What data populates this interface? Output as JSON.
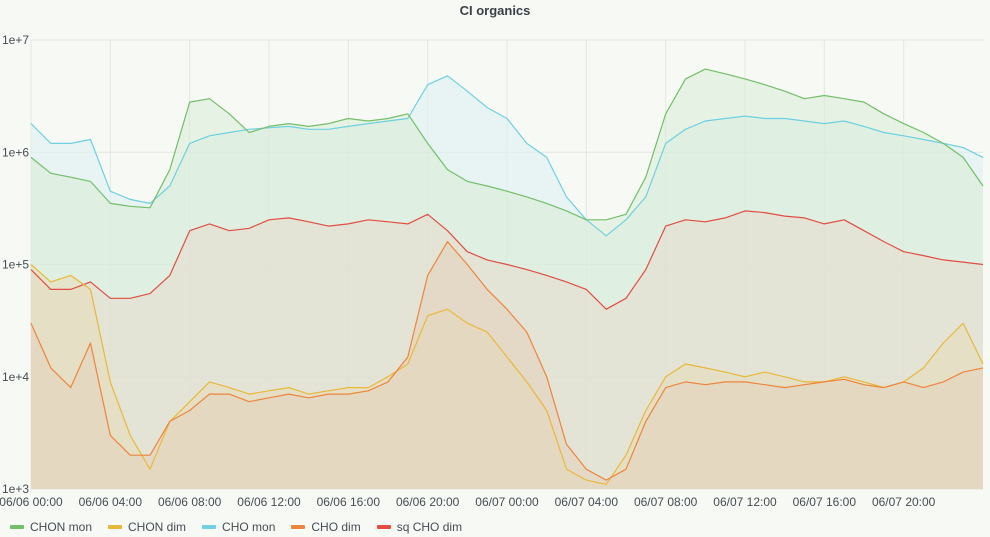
{
  "chart_data": {
    "type": "area",
    "title": "CI organics",
    "y_scale": "log",
    "ylim": [
      1000,
      10000000
    ],
    "y_ticks": [
      1000,
      10000,
      100000,
      1000000,
      10000000
    ],
    "y_tick_labels": [
      "1e+3",
      "1e+4",
      "1e+5",
      "1e+6",
      "1e+7"
    ],
    "x_start": "06/06 00:00",
    "x_end": "06/08 00:00",
    "x_ticks": [
      "06/06 00:00",
      "06/06 04:00",
      "06/06 08:00",
      "06/06 12:00",
      "06/06 16:00",
      "06/06 20:00",
      "06/07 00:00",
      "06/07 04:00",
      "06/07 08:00",
      "06/07 12:00",
      "06/07 16:00",
      "06/07 20:00"
    ],
    "grid": true,
    "legend_position": "bottom-left",
    "series": [
      {
        "name": "CHON mon",
        "color": "#73bf69",
        "fill": "#d9ecd4",
        "points": [
          [
            "06/06 00:00",
            900000
          ],
          [
            "06/06 01:00",
            650000
          ],
          [
            "06/06 02:00",
            600000
          ],
          [
            "06/06 03:00",
            550000
          ],
          [
            "06/06 04:00",
            350000
          ],
          [
            "06/06 05:00",
            330000
          ],
          [
            "06/06 06:00",
            320000
          ],
          [
            "06/06 07:00",
            700000
          ],
          [
            "06/06 08:00",
            2800000
          ],
          [
            "06/06 09:00",
            3000000
          ],
          [
            "06/06 10:00",
            2200000
          ],
          [
            "06/06 11:00",
            1500000
          ],
          [
            "06/06 12:00",
            1700000
          ],
          [
            "06/06 13:00",
            1800000
          ],
          [
            "06/06 14:00",
            1700000
          ],
          [
            "06/06 15:00",
            1800000
          ],
          [
            "06/06 16:00",
            2000000
          ],
          [
            "06/06 17:00",
            1900000
          ],
          [
            "06/06 18:00",
            2000000
          ],
          [
            "06/06 19:00",
            2200000
          ],
          [
            "06/06 20:00",
            1200000
          ],
          [
            "06/06 21:00",
            700000
          ],
          [
            "06/06 22:00",
            550000
          ],
          [
            "06/06 23:00",
            500000
          ],
          [
            "06/07 00:00",
            450000
          ],
          [
            "06/07 01:00",
            400000
          ],
          [
            "06/07 02:00",
            350000
          ],
          [
            "06/07 03:00",
            300000
          ],
          [
            "06/07 04:00",
            250000
          ],
          [
            "06/07 05:00",
            250000
          ],
          [
            "06/07 06:00",
            280000
          ],
          [
            "06/07 07:00",
            600000
          ],
          [
            "06/07 08:00",
            2200000
          ],
          [
            "06/07 09:00",
            4500000
          ],
          [
            "06/07 10:00",
            5500000
          ],
          [
            "06/07 11:00",
            5000000
          ],
          [
            "06/07 12:00",
            4500000
          ],
          [
            "06/07 13:00",
            4000000
          ],
          [
            "06/07 14:00",
            3500000
          ],
          [
            "06/07 15:00",
            3000000
          ],
          [
            "06/07 16:00",
            3200000
          ],
          [
            "06/07 17:00",
            3000000
          ],
          [
            "06/07 18:00",
            2800000
          ],
          [
            "06/07 19:00",
            2200000
          ],
          [
            "06/07 20:00",
            1800000
          ],
          [
            "06/07 21:00",
            1500000
          ],
          [
            "06/07 22:00",
            1200000
          ],
          [
            "06/07 23:00",
            900000
          ],
          [
            "06/08 00:00",
            500000
          ]
        ]
      },
      {
        "name": "CHON dim",
        "color": "#eab839",
        "fill": "#e8ddb8",
        "points": [
          [
            "06/06 00:00",
            100000
          ],
          [
            "06/06 01:00",
            70000
          ],
          [
            "06/06 02:00",
            80000
          ],
          [
            "06/06 03:00",
            60000
          ],
          [
            "06/06 04:00",
            9000
          ],
          [
            "06/06 05:00",
            3000
          ],
          [
            "06/06 06:00",
            1500
          ],
          [
            "06/06 07:00",
            4000
          ],
          [
            "06/06 08:00",
            6000
          ],
          [
            "06/06 09:00",
            9000
          ],
          [
            "06/06 10:00",
            8000
          ],
          [
            "06/06 11:00",
            7000
          ],
          [
            "06/06 12:00",
            7500
          ],
          [
            "06/06 13:00",
            8000
          ],
          [
            "06/06 14:00",
            7000
          ],
          [
            "06/06 15:00",
            7500
          ],
          [
            "06/06 16:00",
            8000
          ],
          [
            "06/06 17:00",
            8000
          ],
          [
            "06/06 18:00",
            10000
          ],
          [
            "06/06 19:00",
            13000
          ],
          [
            "06/06 20:00",
            35000
          ],
          [
            "06/06 21:00",
            40000
          ],
          [
            "06/06 22:00",
            30000
          ],
          [
            "06/06 23:00",
            25000
          ],
          [
            "06/07 00:00",
            15000
          ],
          [
            "06/07 01:00",
            9000
          ],
          [
            "06/07 02:00",
            5000
          ],
          [
            "06/07 03:00",
            1500
          ],
          [
            "06/07 04:00",
            1200
          ],
          [
            "06/07 05:00",
            1100
          ],
          [
            "06/07 06:00",
            2000
          ],
          [
            "06/07 07:00",
            5000
          ],
          [
            "06/07 08:00",
            10000
          ],
          [
            "06/07 09:00",
            13000
          ],
          [
            "06/07 10:00",
            12000
          ],
          [
            "06/07 11:00",
            11000
          ],
          [
            "06/07 12:00",
            10000
          ],
          [
            "06/07 13:00",
            11000
          ],
          [
            "06/07 14:00",
            10000
          ],
          [
            "06/07 15:00",
            9000
          ],
          [
            "06/07 16:00",
            9000
          ],
          [
            "06/07 17:00",
            10000
          ],
          [
            "06/07 18:00",
            9000
          ],
          [
            "06/07 19:00",
            8000
          ],
          [
            "06/07 20:00",
            9000
          ],
          [
            "06/07 21:00",
            12000
          ],
          [
            "06/07 22:00",
            20000
          ],
          [
            "06/07 23:00",
            30000
          ],
          [
            "06/08 00:00",
            13000
          ]
        ]
      },
      {
        "name": "CHO mon",
        "color": "#6ed0e0",
        "fill": "#dbf0f1",
        "points": [
          [
            "06/06 00:00",
            1800000
          ],
          [
            "06/06 01:00",
            1200000
          ],
          [
            "06/06 02:00",
            1200000
          ],
          [
            "06/06 03:00",
            1300000
          ],
          [
            "06/06 04:00",
            450000
          ],
          [
            "06/06 05:00",
            380000
          ],
          [
            "06/06 06:00",
            350000
          ],
          [
            "06/06 07:00",
            500000
          ],
          [
            "06/06 08:00",
            1200000
          ],
          [
            "06/06 09:00",
            1400000
          ],
          [
            "06/06 10:00",
            1500000
          ],
          [
            "06/06 11:00",
            1600000
          ],
          [
            "06/06 12:00",
            1650000
          ],
          [
            "06/06 13:00",
            1700000
          ],
          [
            "06/06 14:00",
            1600000
          ],
          [
            "06/06 15:00",
            1600000
          ],
          [
            "06/06 16:00",
            1700000
          ],
          [
            "06/06 17:00",
            1800000
          ],
          [
            "06/06 18:00",
            1900000
          ],
          [
            "06/06 19:00",
            2000000
          ],
          [
            "06/06 20:00",
            4000000
          ],
          [
            "06/06 21:00",
            4800000
          ],
          [
            "06/06 22:00",
            3500000
          ],
          [
            "06/06 23:00",
            2500000
          ],
          [
            "06/07 00:00",
            2000000
          ],
          [
            "06/07 01:00",
            1200000
          ],
          [
            "06/07 02:00",
            900000
          ],
          [
            "06/07 03:00",
            400000
          ],
          [
            "06/07 04:00",
            250000
          ],
          [
            "06/07 05:00",
            180000
          ],
          [
            "06/07 06:00",
            250000
          ],
          [
            "06/07 07:00",
            400000
          ],
          [
            "06/07 08:00",
            1200000
          ],
          [
            "06/07 09:00",
            1600000
          ],
          [
            "06/07 10:00",
            1900000
          ],
          [
            "06/07 11:00",
            2000000
          ],
          [
            "06/07 12:00",
            2100000
          ],
          [
            "06/07 13:00",
            2000000
          ],
          [
            "06/07 14:00",
            2000000
          ],
          [
            "06/07 15:00",
            1900000
          ],
          [
            "06/07 16:00",
            1800000
          ],
          [
            "06/07 17:00",
            1900000
          ],
          [
            "06/07 18:00",
            1700000
          ],
          [
            "06/07 19:00",
            1500000
          ],
          [
            "06/07 20:00",
            1400000
          ],
          [
            "06/07 21:00",
            1300000
          ],
          [
            "06/07 22:00",
            1200000
          ],
          [
            "06/07 23:00",
            1100000
          ],
          [
            "06/08 00:00",
            900000
          ]
        ]
      },
      {
        "name": "CHO dim",
        "color": "#ef843c",
        "fill": "#e6d2bb",
        "points": [
          [
            "06/06 00:00",
            30000
          ],
          [
            "06/06 01:00",
            12000
          ],
          [
            "06/06 02:00",
            8000
          ],
          [
            "06/06 03:00",
            20000
          ],
          [
            "06/06 04:00",
            3000
          ],
          [
            "06/06 05:00",
            2000
          ],
          [
            "06/06 06:00",
            2000
          ],
          [
            "06/06 07:00",
            4000
          ],
          [
            "06/06 08:00",
            5000
          ],
          [
            "06/06 09:00",
            7000
          ],
          [
            "06/06 10:00",
            7000
          ],
          [
            "06/06 11:00",
            6000
          ],
          [
            "06/06 12:00",
            6500
          ],
          [
            "06/06 13:00",
            7000
          ],
          [
            "06/06 14:00",
            6500
          ],
          [
            "06/06 15:00",
            7000
          ],
          [
            "06/06 16:00",
            7000
          ],
          [
            "06/06 17:00",
            7500
          ],
          [
            "06/06 18:00",
            9000
          ],
          [
            "06/06 19:00",
            15000
          ],
          [
            "06/06 20:00",
            80000
          ],
          [
            "06/06 21:00",
            160000
          ],
          [
            "06/06 22:00",
            100000
          ],
          [
            "06/06 23:00",
            60000
          ],
          [
            "06/07 00:00",
            40000
          ],
          [
            "06/07 01:00",
            25000
          ],
          [
            "06/07 02:00",
            10000
          ],
          [
            "06/07 03:00",
            2500
          ],
          [
            "06/07 04:00",
            1500
          ],
          [
            "06/07 05:00",
            1200
          ],
          [
            "06/07 06:00",
            1500
          ],
          [
            "06/07 07:00",
            4000
          ],
          [
            "06/07 08:00",
            8000
          ],
          [
            "06/07 09:00",
            9000
          ],
          [
            "06/07 10:00",
            8500
          ],
          [
            "06/07 11:00",
            9000
          ],
          [
            "06/07 12:00",
            9000
          ],
          [
            "06/07 13:00",
            8500
          ],
          [
            "06/07 14:00",
            8000
          ],
          [
            "06/07 15:00",
            8500
          ],
          [
            "06/07 16:00",
            9000
          ],
          [
            "06/07 17:00",
            9500
          ],
          [
            "06/07 18:00",
            8500
          ],
          [
            "06/07 19:00",
            8000
          ],
          [
            "06/07 20:00",
            9000
          ],
          [
            "06/07 21:00",
            8000
          ],
          [
            "06/07 22:00",
            9000
          ],
          [
            "06/07 23:00",
            11000
          ],
          [
            "06/08 00:00",
            12000
          ]
        ]
      },
      {
        "name": "sq CHO dim",
        "color": "#e24d42",
        "fill": "#e5d8cc",
        "points": [
          [
            "06/06 00:00",
            90000
          ],
          [
            "06/06 01:00",
            60000
          ],
          [
            "06/06 02:00",
            60000
          ],
          [
            "06/06 03:00",
            70000
          ],
          [
            "06/06 04:00",
            50000
          ],
          [
            "06/06 05:00",
            50000
          ],
          [
            "06/06 06:00",
            55000
          ],
          [
            "06/06 07:00",
            80000
          ],
          [
            "06/06 08:00",
            200000
          ],
          [
            "06/06 09:00",
            230000
          ],
          [
            "06/06 10:00",
            200000
          ],
          [
            "06/06 11:00",
            210000
          ],
          [
            "06/06 12:00",
            250000
          ],
          [
            "06/06 13:00",
            260000
          ],
          [
            "06/06 14:00",
            240000
          ],
          [
            "06/06 15:00",
            220000
          ],
          [
            "06/06 16:00",
            230000
          ],
          [
            "06/06 17:00",
            250000
          ],
          [
            "06/06 18:00",
            240000
          ],
          [
            "06/06 19:00",
            230000
          ],
          [
            "06/06 20:00",
            280000
          ],
          [
            "06/06 21:00",
            200000
          ],
          [
            "06/06 22:00",
            130000
          ],
          [
            "06/06 23:00",
            110000
          ],
          [
            "06/07 00:00",
            100000
          ],
          [
            "06/07 01:00",
            90000
          ],
          [
            "06/07 02:00",
            80000
          ],
          [
            "06/07 03:00",
            70000
          ],
          [
            "06/07 04:00",
            60000
          ],
          [
            "06/07 05:00",
            40000
          ],
          [
            "06/07 06:00",
            50000
          ],
          [
            "06/07 07:00",
            90000
          ],
          [
            "06/07 08:00",
            220000
          ],
          [
            "06/07 09:00",
            250000
          ],
          [
            "06/07 10:00",
            240000
          ],
          [
            "06/07 11:00",
            260000
          ],
          [
            "06/07 12:00",
            300000
          ],
          [
            "06/07 13:00",
            290000
          ],
          [
            "06/07 14:00",
            270000
          ],
          [
            "06/07 15:00",
            260000
          ],
          [
            "06/07 16:00",
            230000
          ],
          [
            "06/07 17:00",
            250000
          ],
          [
            "06/07 18:00",
            200000
          ],
          [
            "06/07 19:00",
            160000
          ],
          [
            "06/07 20:00",
            130000
          ],
          [
            "06/07 21:00",
            120000
          ],
          [
            "06/07 22:00",
            110000
          ],
          [
            "06/07 23:00",
            105000
          ],
          [
            "06/08 00:00",
            100000
          ]
        ]
      }
    ]
  }
}
